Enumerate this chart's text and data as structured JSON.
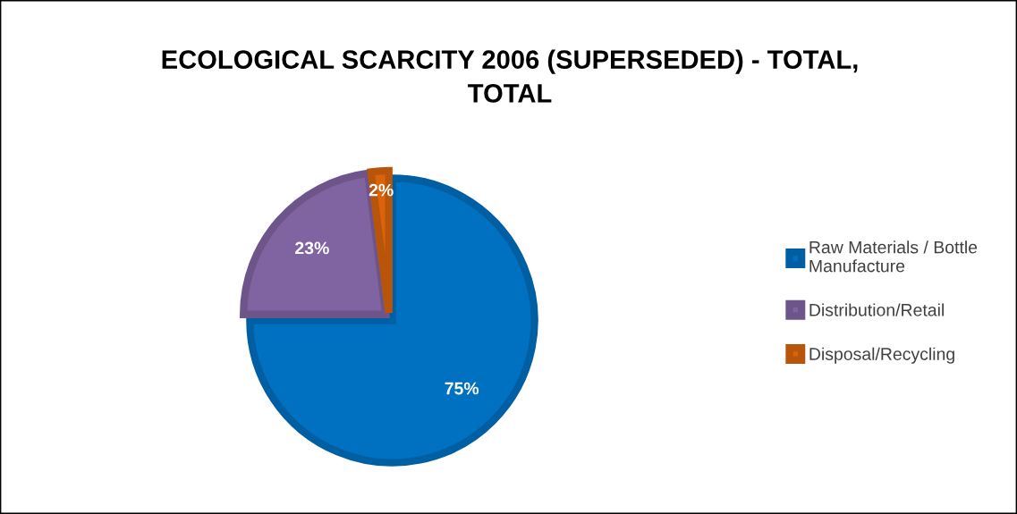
{
  "chart_data": {
    "type": "pie",
    "title": "ECOLOGICAL SCARCITY 2006 (SUPERSEDED) - TOTAL, TOTAL",
    "categories": [
      "Raw Materials / Bottle Manufacture",
      "Distribution/Retail",
      "Disposal/Recycling"
    ],
    "values": [
      75,
      23,
      2
    ],
    "colors": [
      "#0070c0",
      "#8064a2",
      "#d9640c"
    ],
    "value_labels": [
      "75%",
      "23%",
      "2%"
    ],
    "legend": "right"
  }
}
